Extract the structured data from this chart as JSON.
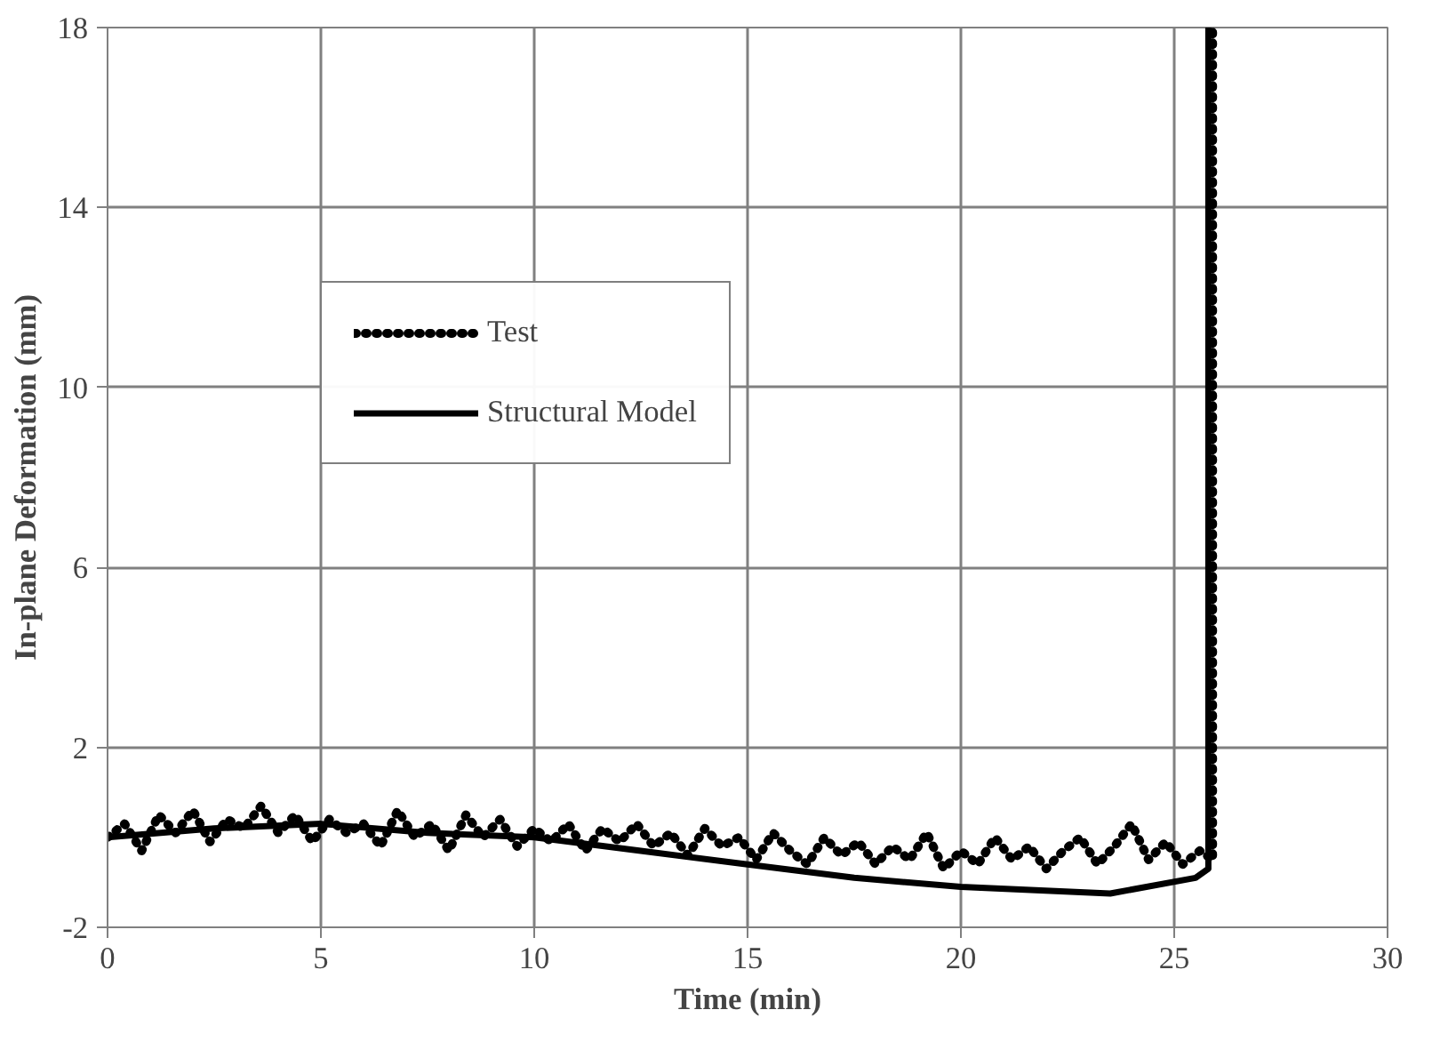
{
  "chart_data": {
    "type": "line",
    "xlabel": "Time (min)",
    "ylabel": "In-plane Deformation (mm)",
    "xlim": [
      0,
      30
    ],
    "xticks": [
      0,
      5,
      10,
      15,
      20,
      25,
      30
    ],
    "ylim": [
      -2,
      18
    ],
    "yticks": [
      -2,
      2,
      6,
      10,
      14,
      18
    ],
    "grid": true,
    "legend": "top left",
    "series": [
      {
        "name": "Test",
        "color": "#000000",
        "line_style": "dotted",
        "x": [
          0,
          0.4,
          0.8,
          1.2,
          1.6,
          2.0,
          2.4,
          2.8,
          3.2,
          3.6,
          4.0,
          4.4,
          4.8,
          5.2,
          5.6,
          6.0,
          6.4,
          6.8,
          7.2,
          7.6,
          8.0,
          8.4,
          8.8,
          9.2,
          9.6,
          10.0,
          10.4,
          10.8,
          11.2,
          11.6,
          12.0,
          12.4,
          12.8,
          13.2,
          13.6,
          14.0,
          14.4,
          14.8,
          15.2,
          15.6,
          16.0,
          16.4,
          16.8,
          17.2,
          17.6,
          18.0,
          18.4,
          18.8,
          19.2,
          19.6,
          20.0,
          20.4,
          20.8,
          21.2,
          21.6,
          22.0,
          22.4,
          22.8,
          23.2,
          23.6,
          24.0,
          24.4,
          24.8,
          25.2,
          25.6,
          25.9,
          25.9
        ],
        "values": [
          0.0,
          0.3,
          -0.3,
          0.5,
          0.1,
          0.6,
          -0.1,
          0.4,
          0.2,
          0.7,
          0.1,
          0.5,
          -0.1,
          0.4,
          0.1,
          0.3,
          -0.2,
          0.6,
          0.0,
          0.3,
          -0.3,
          0.5,
          0.0,
          0.4,
          -0.2,
          0.2,
          -0.1,
          0.3,
          -0.3,
          0.2,
          -0.1,
          0.3,
          -0.2,
          0.1,
          -0.4,
          0.2,
          -0.2,
          0.0,
          -0.5,
          0.1,
          -0.3,
          -0.6,
          0.0,
          -0.4,
          -0.1,
          -0.6,
          -0.2,
          -0.5,
          0.1,
          -0.7,
          -0.3,
          -0.6,
          0.0,
          -0.5,
          -0.2,
          -0.7,
          -0.3,
          0.0,
          -0.6,
          -0.2,
          0.3,
          -0.5,
          -0.1,
          -0.6,
          -0.3,
          -0.5,
          18
        ]
      },
      {
        "name": "Structural Model",
        "color": "#000000",
        "line_style": "solid",
        "x": [
          0,
          2.5,
          5,
          7.5,
          10,
          12.5,
          15,
          17.5,
          20,
          23.5,
          25.5,
          25.8,
          25.8
        ],
        "values": [
          0,
          0.2,
          0.3,
          0.1,
          0,
          -0.3,
          -0.6,
          -0.9,
          -1.1,
          -1.25,
          -0.9,
          -0.7,
          18
        ]
      }
    ]
  }
}
